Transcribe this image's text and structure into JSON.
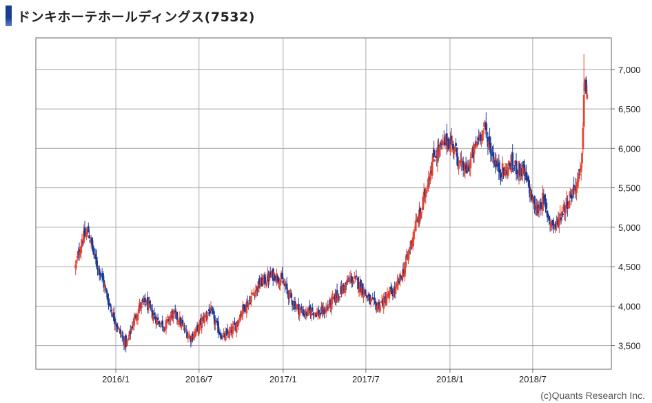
{
  "title": "ドンキホーテホールディングス(7532)",
  "credit": "(c)Quants Research Inc.",
  "colors": {
    "up": "#e8432e",
    "down": "#1c3a96",
    "grid": "#a9a9a9",
    "frame": "#666666"
  },
  "chart_data": {
    "type": "candlestick",
    "title": "ドンキホーテホールディングス(7532)",
    "xlabel": "",
    "ylabel": "",
    "ylim": [
      3200,
      7400
    ],
    "xlim": [
      "2015-07-10",
      "2018-12-20"
    ],
    "x_ticks": [
      {
        "date": "2016-01-01",
        "label": "2016/1"
      },
      {
        "date": "2016-07-01",
        "label": "2016/7"
      },
      {
        "date": "2017-01-01",
        "label": "2017/1"
      },
      {
        "date": "2017-07-01",
        "label": "2017/7"
      },
      {
        "date": "2018-01-01",
        "label": "2018/1"
      },
      {
        "date": "2018-07-01",
        "label": "2018/7"
      }
    ],
    "y_ticks": [
      {
        "value": 3500,
        "label": "3,500"
      },
      {
        "value": 4000,
        "label": "4,000"
      },
      {
        "value": 4500,
        "label": "4,500"
      },
      {
        "value": 5000,
        "label": "5,000"
      },
      {
        "value": 5500,
        "label": "5,500"
      },
      {
        "value": 6000,
        "label": "6,000"
      },
      {
        "value": 6500,
        "label": "6,500"
      },
      {
        "value": 7000,
        "label": "7,000"
      }
    ],
    "grid": true,
    "y_axis_side": "right",
    "approx_closes": [
      [
        "2015-10-05",
        4500
      ],
      [
        "2015-10-19",
        4850
      ],
      [
        "2015-11-02",
        4950
      ],
      [
        "2015-11-16",
        4600
      ],
      [
        "2015-11-30",
        4400
      ],
      [
        "2015-12-14",
        4100
      ],
      [
        "2015-12-28",
        3850
      ],
      [
        "2016-01-11",
        3650
      ],
      [
        "2016-01-25",
        3500
      ],
      [
        "2016-02-08",
        3800
      ],
      [
        "2016-02-22",
        4000
      ],
      [
        "2016-03-07",
        4050
      ],
      [
        "2016-03-21",
        3900
      ],
      [
        "2016-04-04",
        3800
      ],
      [
        "2016-04-18",
        3750
      ],
      [
        "2016-05-02",
        3900
      ],
      [
        "2016-05-16",
        3850
      ],
      [
        "2016-05-30",
        3700
      ],
      [
        "2016-06-13",
        3600
      ],
      [
        "2016-06-27",
        3700
      ],
      [
        "2016-07-11",
        3850
      ],
      [
        "2016-07-25",
        3950
      ],
      [
        "2016-08-08",
        3750
      ],
      [
        "2016-08-22",
        3600
      ],
      [
        "2016-09-05",
        3650
      ],
      [
        "2016-09-19",
        3750
      ],
      [
        "2016-10-03",
        3950
      ],
      [
        "2016-10-17",
        4050
      ],
      [
        "2016-10-31",
        4200
      ],
      [
        "2016-11-14",
        4300
      ],
      [
        "2016-11-28",
        4350
      ],
      [
        "2016-12-12",
        4400
      ],
      [
        "2016-12-26",
        4350
      ],
      [
        "2017-01-09",
        4200
      ],
      [
        "2017-01-23",
        4050
      ],
      [
        "2017-02-06",
        3950
      ],
      [
        "2017-02-20",
        3900
      ],
      [
        "2017-03-06",
        3950
      ],
      [
        "2017-03-20",
        3900
      ],
      [
        "2017-04-03",
        3950
      ],
      [
        "2017-04-17",
        4050
      ],
      [
        "2017-05-01",
        4150
      ],
      [
        "2017-05-15",
        4250
      ],
      [
        "2017-05-29",
        4350
      ],
      [
        "2017-06-12",
        4300
      ],
      [
        "2017-06-26",
        4200
      ],
      [
        "2017-07-10",
        4050
      ],
      [
        "2017-07-24",
        4000
      ],
      [
        "2017-08-07",
        4050
      ],
      [
        "2017-08-21",
        4150
      ],
      [
        "2017-09-04",
        4200
      ],
      [
        "2017-09-18",
        4400
      ],
      [
        "2017-10-02",
        4650
      ],
      [
        "2017-10-16",
        5000
      ],
      [
        "2017-10-30",
        5200
      ],
      [
        "2017-11-13",
        5600
      ],
      [
        "2017-11-27",
        5900
      ],
      [
        "2017-12-11",
        6000
      ],
      [
        "2017-12-25",
        6100
      ],
      [
        "2018-01-08",
        6050
      ],
      [
        "2018-01-22",
        5800
      ],
      [
        "2018-02-05",
        5700
      ],
      [
        "2018-02-19",
        5900
      ],
      [
        "2018-03-05",
        6150
      ],
      [
        "2018-03-19",
        6250
      ],
      [
        "2018-04-02",
        5950
      ],
      [
        "2018-04-16",
        5750
      ],
      [
        "2018-04-30",
        5700
      ],
      [
        "2018-05-14",
        5800
      ],
      [
        "2018-05-28",
        5750
      ],
      [
        "2018-06-11",
        5700
      ],
      [
        "2018-06-25",
        5450
      ],
      [
        "2018-07-09",
        5200
      ],
      [
        "2018-07-23",
        5350
      ],
      [
        "2018-08-06",
        5100
      ],
      [
        "2018-08-20",
        5000
      ],
      [
        "2018-09-03",
        5200
      ],
      [
        "2018-09-17",
        5350
      ],
      [
        "2018-10-01",
        5500
      ],
      [
        "2018-10-15",
        5700
      ],
      [
        "2018-10-22",
        6800
      ],
      [
        "2018-10-29",
        6700
      ]
    ]
  }
}
